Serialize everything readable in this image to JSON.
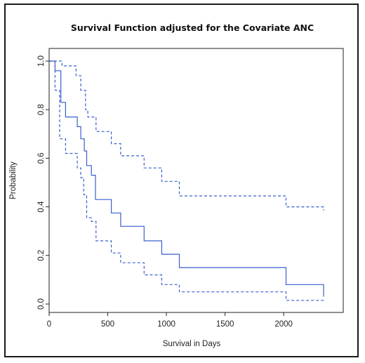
{
  "chart_data": {
    "type": "line",
    "title": "Survival Function adjusted for the Covariate ANC",
    "xlabel": "Survival in Days",
    "ylabel": "Probability",
    "xlim": [
      0,
      2400
    ],
    "ylim": [
      0,
      1
    ],
    "xticks": [
      "0",
      "500",
      "1000",
      "1500",
      "2000"
    ],
    "xtick_values": [
      0,
      500,
      1000,
      1500,
      2000
    ],
    "yticks": [
      "0.0",
      "0.2",
      "0.4",
      "0.6",
      "0.8",
      "1.0"
    ],
    "ytick_values": [
      0.0,
      0.2,
      0.4,
      0.6,
      0.8,
      1.0
    ],
    "grid": false,
    "series": [
      {
        "role": "estimate",
        "style": "solid",
        "color": "#3a5fcd",
        "step": true,
        "x": [
          0,
          50,
          100,
          140,
          240,
          270,
          300,
          320,
          360,
          395,
          530,
          610,
          810,
          960,
          1110,
          2020,
          2340
        ],
        "y": [
          1.0,
          0.96,
          0.83,
          0.77,
          0.73,
          0.68,
          0.63,
          0.57,
          0.53,
          0.43,
          0.375,
          0.32,
          0.26,
          0.205,
          0.15,
          0.08,
          0.03
        ]
      },
      {
        "role": "upper-ci",
        "style": "dashed",
        "color": "#3a5fcd",
        "step": true,
        "x": [
          0,
          50,
          110,
          230,
          270,
          310,
          330,
          400,
          530,
          610,
          810,
          960,
          1110,
          2020,
          2340
        ],
        "y": [
          1.0,
          1.0,
          0.98,
          0.94,
          0.88,
          0.8,
          0.77,
          0.71,
          0.66,
          0.61,
          0.56,
          0.505,
          0.445,
          0.4,
          0.385
        ]
      },
      {
        "role": "lower-ci",
        "style": "dashed",
        "color": "#3a5fcd",
        "step": true,
        "x": [
          0,
          50,
          90,
          140,
          240,
          270,
          295,
          320,
          360,
          400,
          530,
          610,
          810,
          960,
          1110,
          2020,
          2340
        ],
        "y": [
          1.0,
          0.88,
          0.68,
          0.62,
          0.56,
          0.52,
          0.45,
          0.355,
          0.34,
          0.26,
          0.21,
          0.17,
          0.12,
          0.08,
          0.05,
          0.015,
          0.01
        ]
      }
    ]
  }
}
